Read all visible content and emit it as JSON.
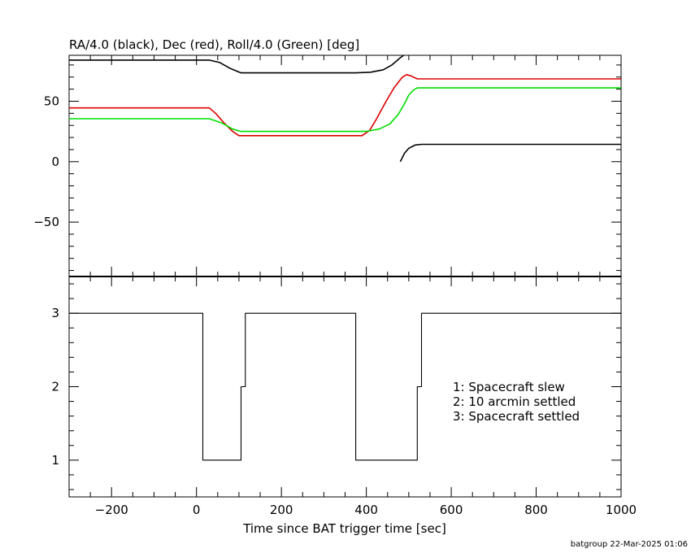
{
  "chart_data": [
    {
      "type": "line",
      "title": "RA/4.0 (black), Dec (red), Roll/4.0 (Green) [deg]",
      "xlim": [
        -300,
        1000
      ],
      "ylim": [
        -95,
        88
      ],
      "yticks": [
        -50,
        0,
        50
      ],
      "yticklabels": [
        "−50",
        "0",
        "50"
      ],
      "grid": false,
      "series": [
        {
          "color": "#000000",
          "segments": [
            [
              [
                -300,
                84
              ],
              [
                30,
                84
              ],
              [
                55,
                82
              ],
              [
                80,
                77
              ],
              [
                105,
                73.5
              ],
              [
                375,
                73.5
              ],
              [
                410,
                74
              ],
              [
                440,
                76
              ],
              [
                460,
                80
              ],
              [
                480,
                86
              ],
              [
                488,
                88
              ]
            ],
            [
              [
                480,
                0
              ],
              [
                490,
                7
              ],
              [
                500,
                11
              ],
              [
                515,
                13.8
              ],
              [
                530,
                14.3
              ],
              [
                1000,
                14.3
              ]
            ]
          ]
        },
        {
          "color": "#dd0000",
          "segments": [
            [
              [
                -300,
                44.5
              ],
              [
                30,
                44.5
              ],
              [
                45,
                40
              ],
              [
                65,
                32
              ],
              [
                85,
                25
              ],
              [
                100,
                21.5
              ],
              [
                390,
                21.5
              ],
              [
                408,
                26
              ],
              [
                425,
                36
              ],
              [
                445,
                49
              ],
              [
                465,
                61
              ],
              [
                485,
                70
              ],
              [
                495,
                72
              ],
              [
                505,
                71
              ],
              [
                520,
                68.5
              ],
              [
                1000,
                68.5
              ]
            ]
          ]
        },
        {
          "color": "#00dd00",
          "segments": [
            [
              [
                -300,
                35.5
              ],
              [
                30,
                35.5
              ],
              [
                60,
                32
              ],
              [
                85,
                27
              ],
              [
                105,
                25
              ],
              [
                400,
                25
              ],
              [
                430,
                27
              ],
              [
                455,
                31
              ],
              [
                475,
                39
              ],
              [
                490,
                48
              ],
              [
                500,
                55
              ],
              [
                510,
                59
              ],
              [
                520,
                61
              ],
              [
                1000,
                61
              ]
            ]
          ]
        }
      ]
    },
    {
      "type": "line",
      "xlabel": "Time since BAT trigger time [sec]",
      "xlim": [
        -300,
        1000
      ],
      "ylim": [
        0.5,
        3.5
      ],
      "xticks": [
        -200,
        0,
        200,
        400,
        600,
        800,
        1000
      ],
      "xticklabels": [
        "−200",
        "0",
        "200",
        "400",
        "600",
        "800",
        "1000"
      ],
      "yticks": [
        1,
        2,
        3
      ],
      "yticklabels": [
        "1",
        "2",
        "3"
      ],
      "series": [
        {
          "color": "#000000",
          "step": true,
          "points": [
            [
              -300,
              3
            ],
            [
              15,
              3
            ],
            [
              15,
              1
            ],
            [
              105,
              1
            ],
            [
              105,
              2
            ],
            [
              115,
              2
            ],
            [
              115,
              3
            ],
            [
              375,
              3
            ],
            [
              375,
              1
            ],
            [
              520,
              1
            ],
            [
              520,
              2
            ],
            [
              530,
              2
            ],
            [
              530,
              3
            ],
            [
              1000,
              3
            ]
          ]
        }
      ],
      "annotations": [
        "1: Spacecraft slew",
        "2: 10 arcmin settled",
        "3: Spacecraft settled"
      ]
    }
  ],
  "footer": "batgroup 22-Mar-2025 01:06"
}
